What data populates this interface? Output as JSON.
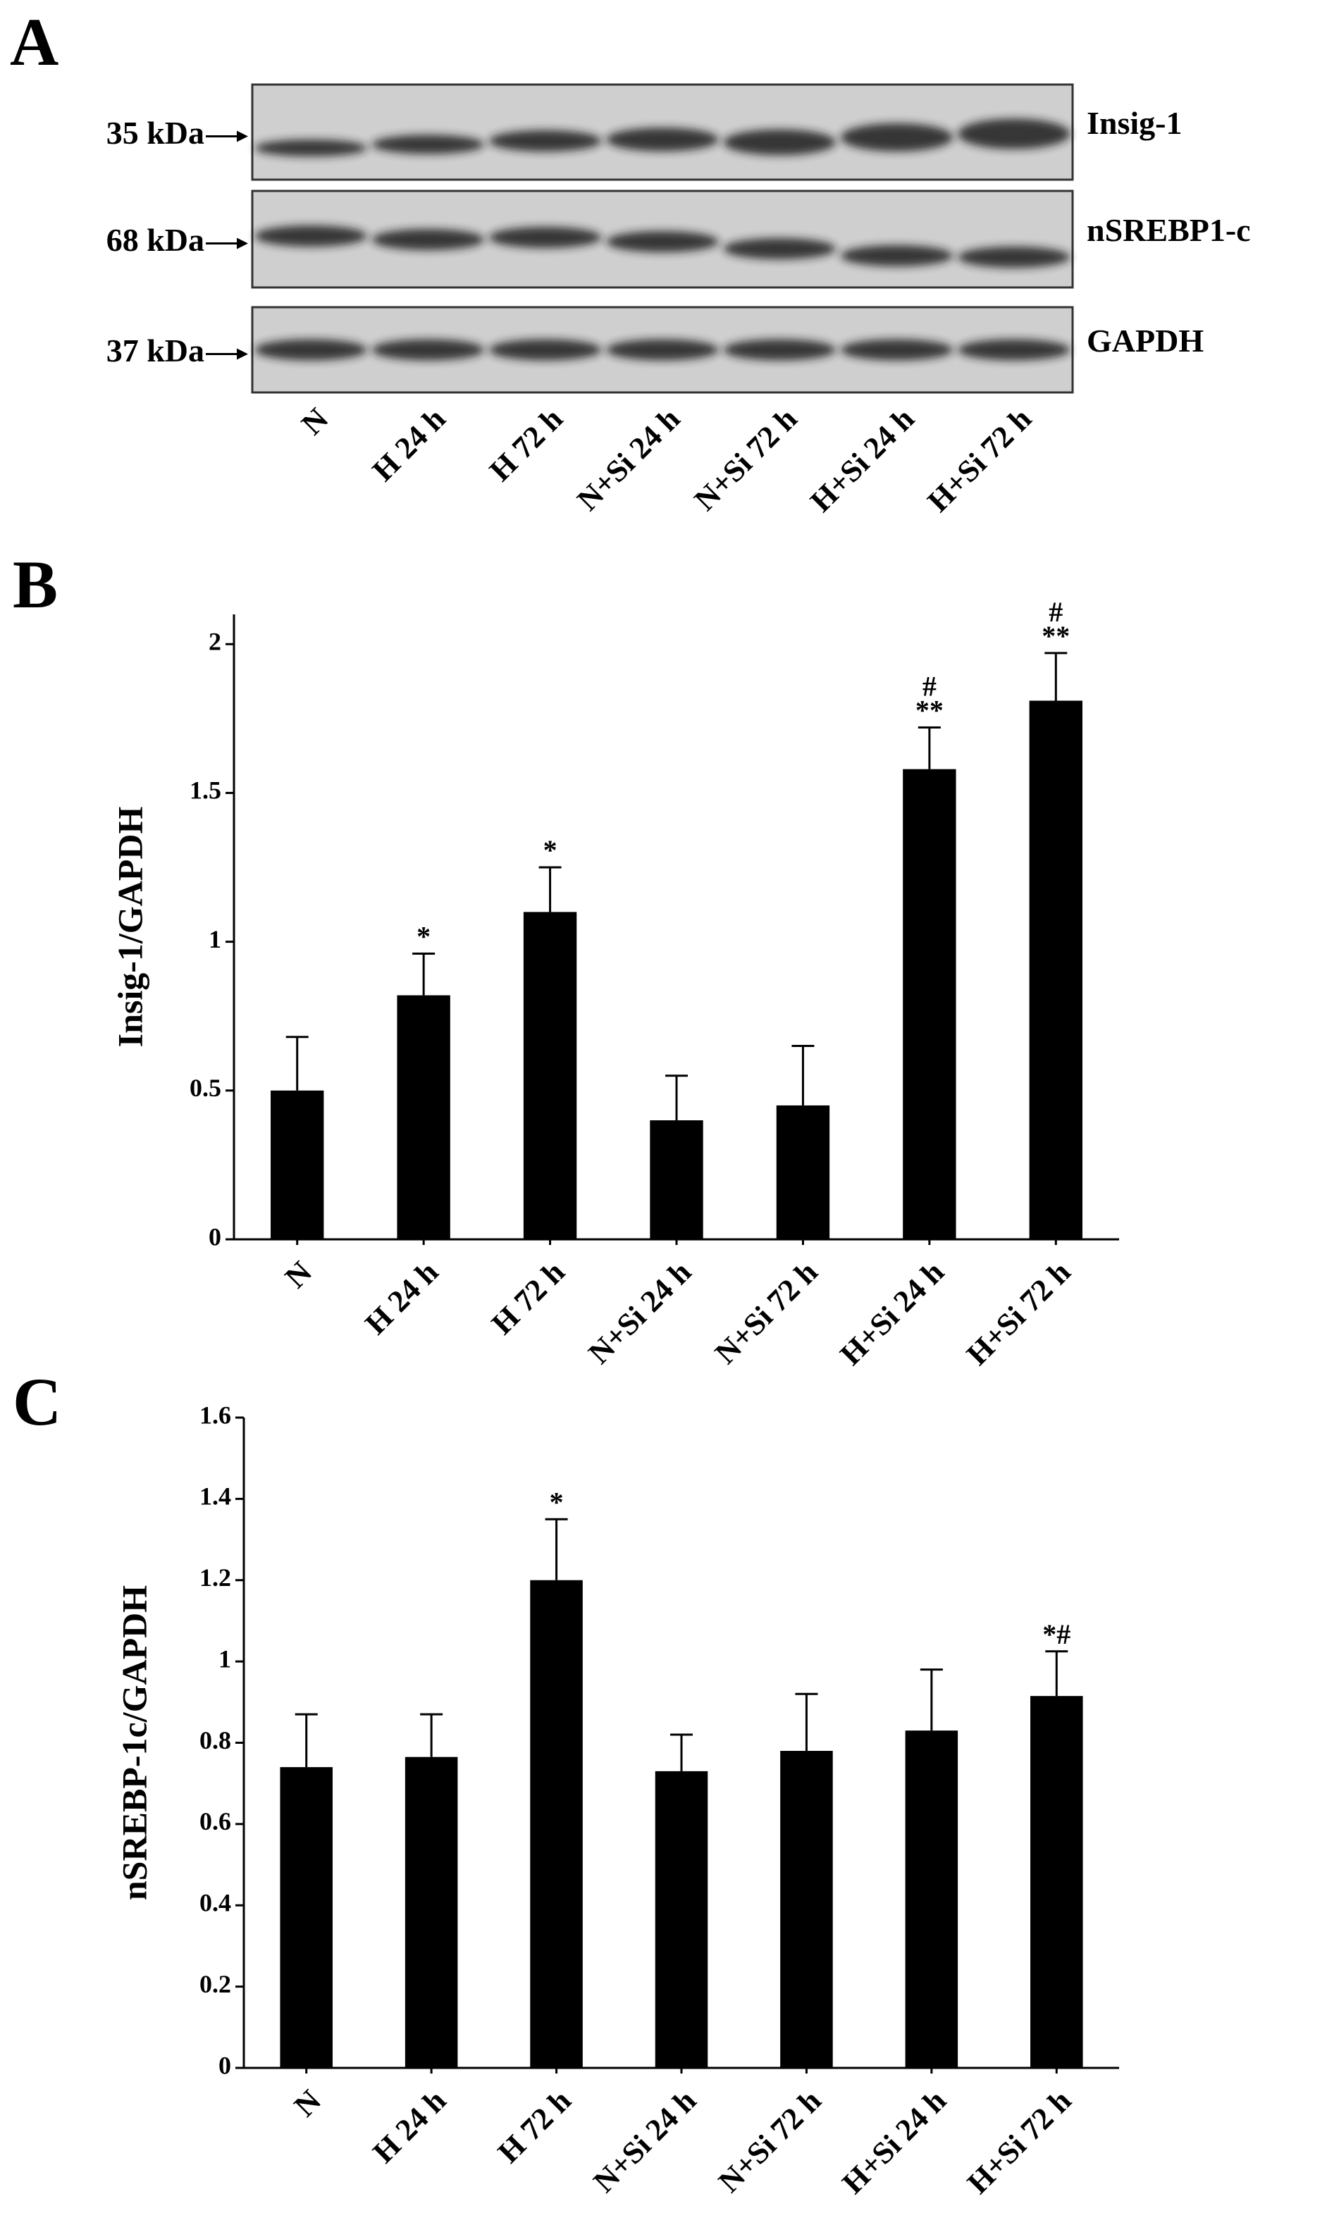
{
  "blot": {
    "panel_label": "A",
    "rows": [
      {
        "marker": "35 kDa",
        "protein": "Insig-1"
      },
      {
        "marker": "68 kDa",
        "protein": "nSREBP1-c"
      },
      {
        "marker": "37 kDa",
        "protein": "GAPDH"
      }
    ],
    "lanes": [
      "N",
      "H 24 h",
      "H 72 h",
      "N+Si 24 h",
      "N+Si 72 h",
      "H+Si 24 h",
      "H+Si 72 h"
    ]
  },
  "chart_data": [
    {
      "type": "bar",
      "panel_label": "B",
      "ylabel": "Insig-1/GAPDH",
      "categories": [
        "N",
        "H 24 h",
        "H 72 h",
        "N+Si 24 h",
        "N+Si 72 h",
        "H+Si 24 h",
        "H+Si 72 h"
      ],
      "values": [
        0.5,
        0.82,
        1.1,
        0.4,
        0.45,
        1.58,
        1.81
      ],
      "errors": [
        0.18,
        0.14,
        0.15,
        0.15,
        0.2,
        0.14,
        0.16
      ],
      "annotations": [
        null,
        [
          "*"
        ],
        [
          "*"
        ],
        null,
        null,
        [
          "#",
          "**"
        ],
        [
          "#",
          "**"
        ]
      ],
      "color": "#000000",
      "ylim": [
        0,
        2.1
      ],
      "yticks": [
        0,
        0.5,
        1,
        1.5,
        2
      ]
    },
    {
      "type": "bar",
      "panel_label": "C",
      "ylabel": "nSREBP-1c/GAPDH",
      "categories": [
        "N",
        "H 24 h",
        "H 72 h",
        "N+Si 24 h",
        "N+Si 72 h",
        "H+Si 24 h",
        "H+Si 72 h"
      ],
      "values": [
        0.74,
        0.765,
        1.2,
        0.73,
        0.78,
        0.83,
        0.915
      ],
      "errors": [
        0.13,
        0.105,
        0.15,
        0.09,
        0.14,
        0.15,
        0.11
      ],
      "annotations": [
        null,
        null,
        [
          "*"
        ],
        null,
        null,
        null,
        [
          "*#"
        ]
      ],
      "color": "#000000",
      "ylim": [
        0,
        1.6
      ],
      "yticks": [
        0,
        0.2,
        0.4,
        0.6,
        0.8,
        1,
        1.2,
        1.4,
        1.6
      ]
    }
  ]
}
